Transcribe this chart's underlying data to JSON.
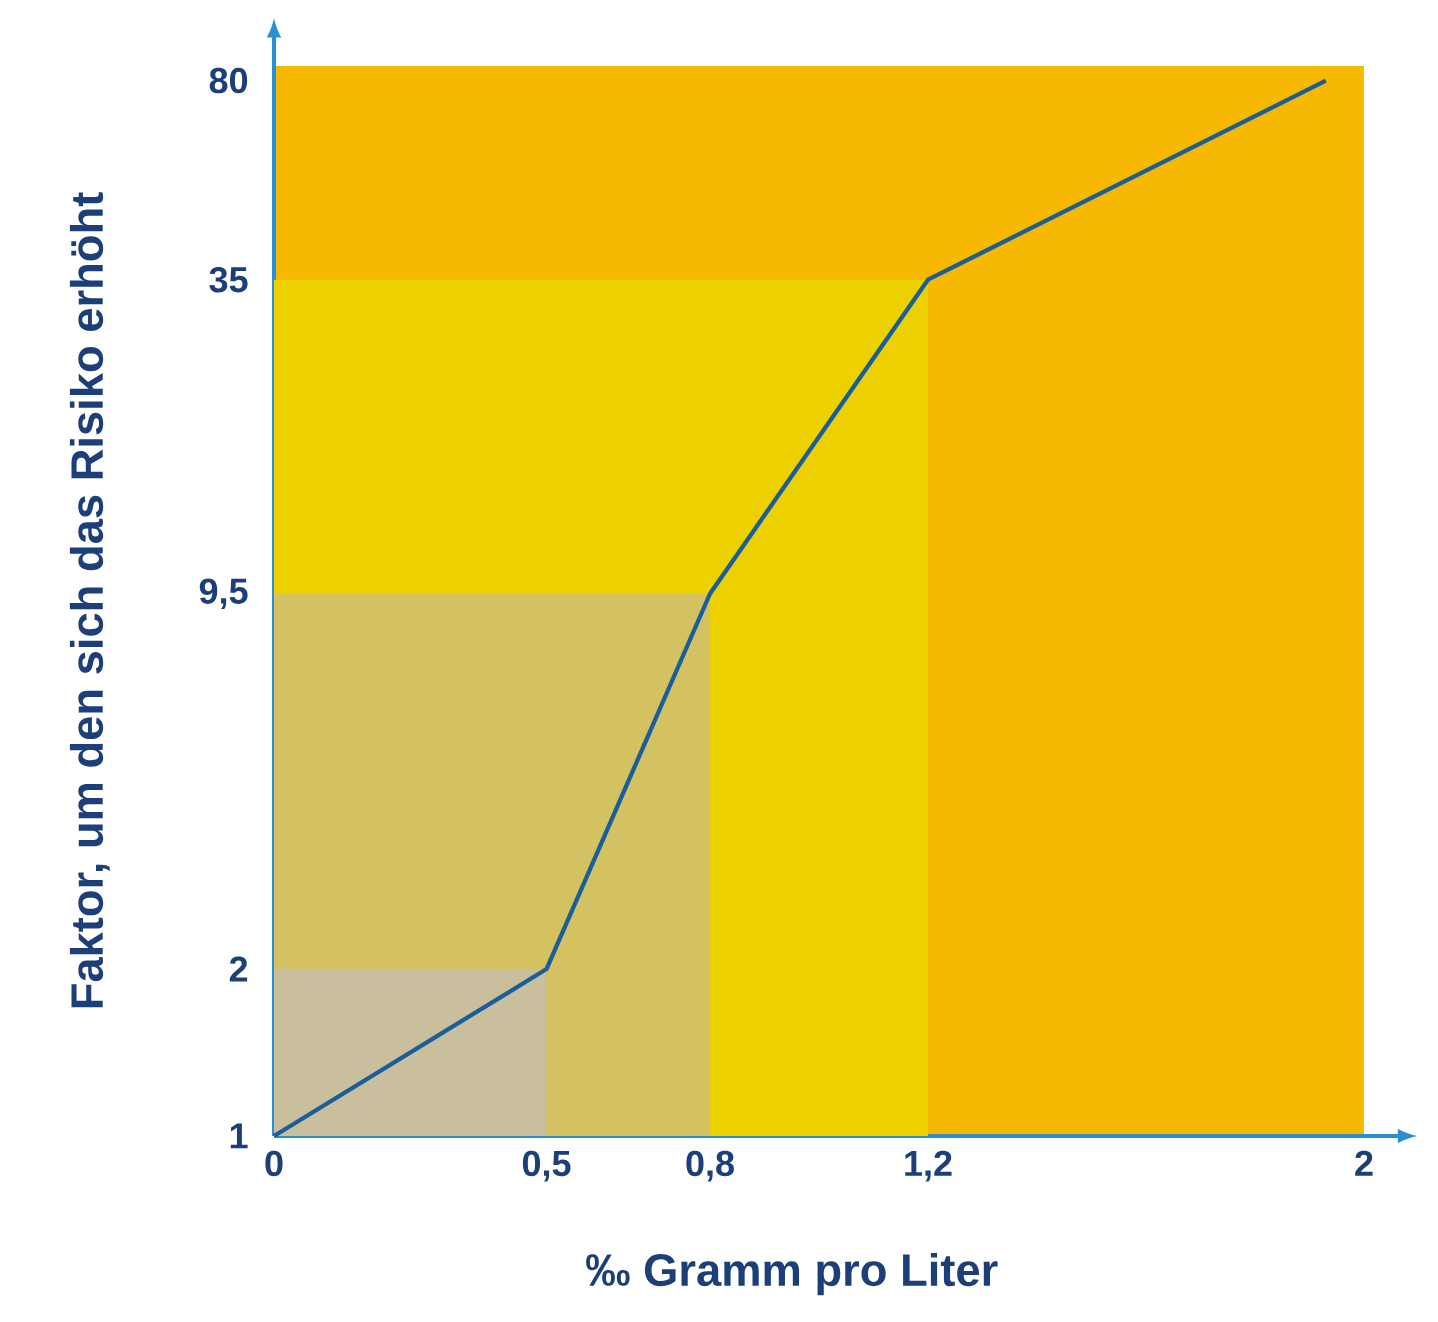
{
  "chart_data": {
    "type": "line",
    "xlabel": "‰ Gramm pro Liter",
    "ylabel": "Faktor, um den sich das Risiko erhöht",
    "series": [
      {
        "type": "area",
        "color": "#ecd000",
        "x": [
          0,
          1.2
        ],
        "values": [
          35,
          35
        ]
      },
      {
        "type": "area",
        "color": "#d4c162",
        "x": [
          0,
          0.8
        ],
        "values": [
          9.5,
          9.5
        ]
      },
      {
        "type": "area",
        "color": "#c9bf9c",
        "x": [
          0,
          0.5
        ],
        "values": [
          2,
          2
        ]
      },
      {
        "color": "#1a5e9a",
        "x": [
          0,
          0.5,
          0.8,
          1.2,
          1.93
        ],
        "values": [
          1,
          2,
          9.5,
          35,
          80
        ]
      }
    ],
    "xlim": [
      0,
      2
    ],
    "ylim": [
      1,
      85
    ],
    "log": "y",
    "xticks": [
      0,
      {
        "value": 0.5,
        "label": "0,5"
      },
      {
        "value": 0.8,
        "label": "0,8"
      },
      {
        "value": 1.2,
        "label": "1,2"
      },
      2
    ],
    "yticks": [
      1,
      2,
      {
        "value": 9.5,
        "label": "9,5"
      },
      35,
      80
    ],
    "marker": "none",
    "line_style": "solid",
    "grid": false
  }
}
